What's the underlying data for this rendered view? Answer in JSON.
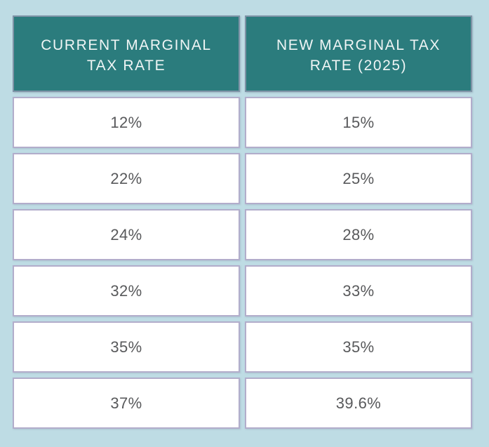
{
  "colors": {
    "page_background": "#bedce4",
    "header_fill": "#2b7c7d",
    "header_border": "#7e93a6",
    "header_text": "#eff5f5",
    "cell_background": "#ffffff",
    "cell_border": "#b2adcb",
    "cell_text": "#58595b"
  },
  "table": {
    "headers": [
      "CURRENT MARGINAL\nTAX RATE",
      "NEW MARGINAL TAX\nRATE (2025)"
    ],
    "rows": [
      [
        "12%",
        "15%"
      ],
      [
        "22%",
        "25%"
      ],
      [
        "24%",
        "28%"
      ],
      [
        "32%",
        "33%"
      ],
      [
        "35%",
        "35%"
      ],
      [
        "37%",
        "39.6%"
      ]
    ]
  },
  "chart_data": {
    "type": "table",
    "title": "",
    "columns": [
      "CURRENT MARGINAL TAX RATE",
      "NEW MARGINAL TAX RATE (2025)"
    ],
    "rows": [
      [
        "12%",
        "15%"
      ],
      [
        "22%",
        "25%"
      ],
      [
        "24%",
        "28%"
      ],
      [
        "32%",
        "33%"
      ],
      [
        "35%",
        "35%"
      ],
      [
        "37%",
        "39.6%"
      ]
    ],
    "current_rates_pct": [
      12,
      22,
      24,
      32,
      35,
      37
    ],
    "new_rates_2025_pct": [
      15,
      25,
      28,
      33,
      35,
      39.6
    ]
  }
}
